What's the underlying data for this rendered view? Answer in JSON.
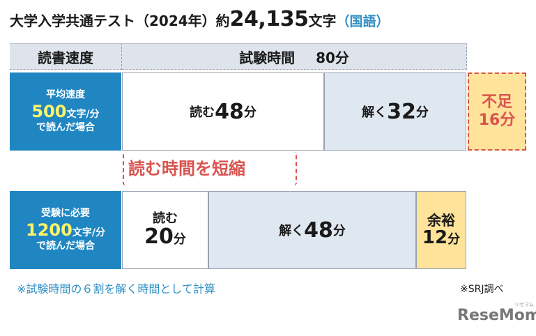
{
  "title": {
    "prefix": "大学入学共通テスト（2024年）約",
    "number": "24,135",
    "suffix": "文字",
    "subject": "（国語）"
  },
  "header": {
    "left": "読書速度",
    "right_label": "試験時間",
    "right_value": "80分"
  },
  "row1": {
    "label_line1": "平均速度",
    "label_speed": "500",
    "label_speed_unit": "文字/分",
    "label_line3": "で読んだ場合",
    "read_prefix": "読む",
    "read_value": "48",
    "read_unit": "分",
    "solve_prefix": "解く",
    "solve_value": "32",
    "solve_unit": "分",
    "lack_line1": "不足",
    "lack_line2": "16分"
  },
  "shorten_label": "読む時間を短縮",
  "row2": {
    "label_line1": "受験に必要",
    "label_speed": "1200",
    "label_speed_unit": "文字/分",
    "label_line3": "で読んだ場合",
    "read_prefix": "読む",
    "read_value": "20",
    "read_unit": "分",
    "solve_prefix": "解く",
    "solve_value": "48",
    "solve_unit": "分",
    "spare_line1": "余裕",
    "spare_value": "12",
    "spare_unit": "分"
  },
  "note": "※試験時間の６割を解く時間として計算",
  "source": "※SRJ調べ",
  "logo": "ReseMom",
  "logo_ruby": "リセマム",
  "colors": {
    "label_blue": "#1f86c2",
    "accent_yellow_text": "#fff46a",
    "solve_blue": "#dfe7f0",
    "warn_yellow": "#ffe39a",
    "warn_red": "#d9534f",
    "note_blue": "#2f8fc4"
  }
}
